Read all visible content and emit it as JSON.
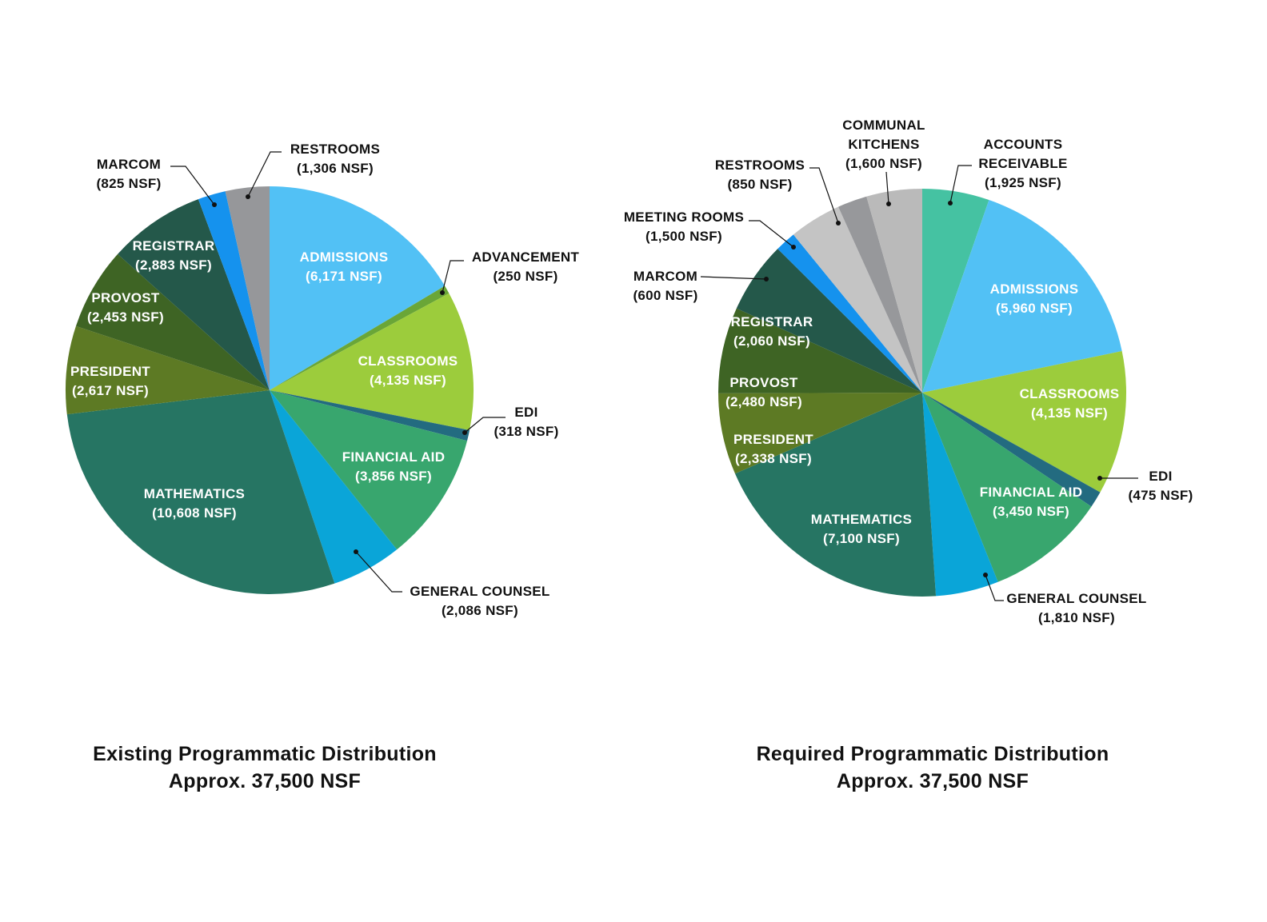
{
  "chart_data": [
    {
      "type": "pie",
      "title": "Existing Programmatic Distribution",
      "subtitle": "Approx. 37,500 NSF",
      "categories": [
        "ADMISSIONS",
        "ADVANCEMENT",
        "CLASSROOMS",
        "EDI",
        "FINANCIAL AID",
        "GENERAL COUNSEL",
        "MATHEMATICS",
        "PRESIDENT",
        "PROVOST",
        "REGISTRAR",
        "MARCOM",
        "RESTROOMS"
      ],
      "values": [
        6171,
        250,
        4135,
        318,
        3856,
        2086,
        10608,
        2617,
        2453,
        2883,
        825,
        1306
      ],
      "value_labels": [
        "(6,171 NSF)",
        "(250 NSF)",
        "(4,135 NSF)",
        "(318 NSF)",
        "(3,856 NSF)",
        "(2,086 NSF)",
        "(10,608 NSF)",
        "(2,617 NSF)",
        "(2,453 NSF)",
        "(2,883 NSF)",
        "(825 NSF)",
        "(1,306 NSF)"
      ],
      "colors": [
        "#52c1f5",
        "#6aa637",
        "#9ccc3c",
        "#236b80",
        "#38a66e",
        "#0aa5d8",
        "#267563",
        "#5d7a24",
        "#3e6424",
        "#24584a",
        "#1592ee",
        "#96979a"
      ]
    },
    {
      "type": "pie",
      "title": "Required Programmatic Distribution",
      "subtitle": "Approx. 37,500 NSF",
      "categories": [
        "ACCOUNTS\nRECEIVABLE",
        "ADMISSIONS",
        "CLASSROOMS",
        "EDI",
        "FINANCIAL AID",
        "GENERAL COUNSEL",
        "MATHEMATICS",
        "PRESIDENT",
        "PROVOST",
        "REGISTRAR",
        "MARCOM",
        "MEETING ROOMS",
        "RESTROOMS",
        "COMMUNAL\nKITCHENS"
      ],
      "values": [
        1925,
        5960,
        4135,
        475,
        3450,
        1810,
        7100,
        2338,
        2480,
        2060,
        600,
        1500,
        850,
        1600
      ],
      "value_labels": [
        "(1,925 NSF)",
        "(5,960 NSF)",
        "(4,135 NSF)",
        "(475 NSF)",
        "(3,450 NSF)",
        "(1,810 NSF)",
        "(7,100 NSF)",
        "(2,338 NSF)",
        "(2,480 NSF)",
        "(2,060 NSF)",
        "(600 NSF)",
        "(1,500 NSF)",
        "(850 NSF)",
        "(1,600 NSF)"
      ],
      "colors": [
        "#45c2a2",
        "#52c1f5",
        "#9ccc3c",
        "#236b80",
        "#38a66e",
        "#0aa5d8",
        "#267563",
        "#5d7a24",
        "#3e6424",
        "#24584a",
        "#1592ee",
        "#c4c4c4",
        "#97989b",
        "#bababa"
      ]
    }
  ]
}
